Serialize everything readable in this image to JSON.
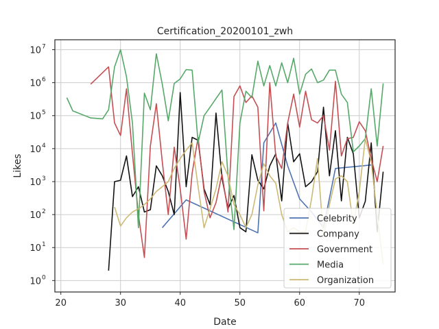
{
  "chart_data": {
    "type": "line",
    "title": "Certification_20200101_zwh",
    "xlabel": "Date",
    "ylabel": "Likes",
    "xlim": [
      19,
      76
    ],
    "ylim": [
      0.45,
      20000000
    ],
    "yscale": "log",
    "grid": true,
    "legend_position": "lower-right",
    "x_ticks": [
      20,
      30,
      40,
      50,
      60,
      70
    ],
    "y_ticks": [
      1,
      10,
      100,
      1000,
      10000,
      100000,
      1000000,
      10000000
    ],
    "y_tick_exponents": [
      "0",
      "1",
      "2",
      "3",
      "4",
      "5",
      "6",
      "7"
    ],
    "y_tick_base": "10",
    "series": [
      {
        "name": "Celebrity",
        "color": "#4c72b0",
        "x": [
          37,
          41,
          53,
          54,
          56,
          58,
          60,
          62,
          64,
          66,
          72
        ],
        "y": [
          40,
          280,
          28,
          15000,
          60000,
          3000,
          300,
          120,
          40,
          2500,
          3200
        ]
      },
      {
        "name": "Company",
        "color": "#111111",
        "x": [
          28,
          29,
          30,
          31,
          32,
          33,
          34,
          35,
          36,
          37,
          38,
          39,
          40,
          41,
          42,
          43,
          44,
          45,
          46,
          47,
          48,
          49,
          50,
          51,
          52,
          53,
          54,
          55,
          56,
          57,
          58,
          59,
          60,
          61,
          62,
          63,
          64,
          65,
          66,
          67,
          68,
          69,
          70,
          71,
          72,
          73,
          74
        ],
        "y": [
          2,
          1000,
          1100,
          6000,
          350,
          700,
          120,
          140,
          3000,
          1500,
          500,
          100,
          500000,
          700,
          22000,
          18000,
          600,
          200,
          120000,
          1300,
          150,
          380,
          40,
          30,
          6500,
          1100,
          600,
          3000,
          7000,
          260,
          60000,
          4000,
          7000,
          700,
          1000,
          2000,
          180000,
          1500,
          35000,
          260,
          22000,
          7000,
          80,
          250,
          15000,
          30,
          2000
        ]
      },
      {
        "name": "Government",
        "color": "#c44e52",
        "x": [
          25,
          28,
          29,
          30,
          31,
          32,
          33,
          34,
          35,
          36,
          37,
          38,
          39,
          40,
          41,
          42,
          43,
          44,
          45,
          46,
          47,
          48,
          49,
          50,
          51,
          52,
          53,
          54,
          55,
          56,
          57,
          58,
          59,
          60,
          61,
          62,
          63,
          64,
          65,
          66,
          67,
          68,
          69,
          70,
          71,
          72,
          73,
          74
        ],
        "y": [
          900000,
          3000000,
          60000,
          25000,
          650000,
          7000,
          100,
          5,
          12000,
          230000,
          4000,
          100,
          11000,
          600,
          18,
          1800,
          22000,
          500,
          80,
          230,
          1700,
          120,
          380000,
          800000,
          250000,
          400000,
          180000,
          130,
          1000000,
          6000,
          2500,
          60000,
          450000,
          45000,
          550000,
          75000,
          60000,
          100000,
          9000,
          1100000,
          6000,
          20000,
          22000,
          65000,
          35000,
          5000,
          1000,
          12000
        ]
      },
      {
        "name": "Media",
        "color": "#55a868",
        "x": [
          21,
          22,
          25,
          27,
          28,
          29,
          30,
          31,
          32,
          33,
          34,
          35,
          36,
          37,
          38,
          39,
          40,
          41,
          42,
          43,
          44,
          45,
          46,
          47,
          48,
          49,
          50,
          51,
          52,
          53,
          54,
          55,
          56,
          57,
          58,
          59,
          60,
          61,
          62,
          63,
          64,
          65,
          66,
          67,
          68,
          69,
          70,
          71,
          72,
          73,
          74
        ],
        "y": [
          350000,
          140000,
          85000,
          80000,
          150000,
          3000000,
          10000000,
          1500000,
          60000,
          40,
          480000,
          150000,
          7500000,
          900000,
          70000,
          950000,
          1300000,
          2500000,
          2400000,
          15000,
          100000,
          180000,
          330000,
          600000,
          1500,
          35,
          60000,
          550000,
          350000,
          4500000,
          800000,
          3300000,
          800000,
          4000000,
          1000000,
          5500000,
          450000,
          1800000,
          2600000,
          1000000,
          1200000,
          2400000,
          2400000,
          450000,
          250000,
          8000,
          12000,
          20000,
          650000,
          12000,
          950000
        ]
      },
      {
        "name": "Organization",
        "color": "#ccb974",
        "x": [
          29,
          30,
          31,
          32,
          33,
          34,
          35,
          36,
          37,
          38,
          39,
          40,
          41,
          42,
          43,
          44,
          45,
          46,
          47,
          48,
          49,
          50,
          51,
          52,
          53,
          54,
          55,
          56,
          57,
          58,
          59,
          60,
          61,
          62,
          63,
          64,
          65,
          66,
          67,
          68,
          69,
          70,
          71,
          72,
          73,
          74
        ],
        "y": [
          170,
          45,
          80,
          120,
          150,
          200,
          300,
          500,
          700,
          1000,
          2500,
          5000,
          9000,
          15000,
          700,
          40,
          150,
          600,
          4000,
          1500,
          200,
          100,
          40,
          100,
          800,
          3500,
          1500,
          900,
          100,
          30,
          40,
          30,
          30,
          300,
          5000,
          20,
          200,
          1200,
          1500,
          1000,
          50,
          500,
          20000,
          4000,
          100,
          3
        ]
      }
    ]
  }
}
